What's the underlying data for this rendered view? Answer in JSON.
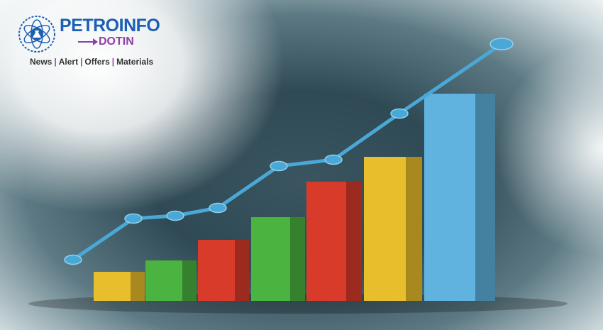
{
  "logo": {
    "brand": "PETROINFO",
    "suffix": "DOTIN",
    "tagline": [
      "News",
      "Alert",
      "Offers",
      "Materials"
    ],
    "separator": "|",
    "brand_color": "#1d5fb4",
    "accent_color": "#8e3fa8"
  },
  "illustration": {
    "bars": [
      {
        "color": "#e9be2c",
        "value": 41
      },
      {
        "color": "#4bb33f",
        "value": 57
      },
      {
        "color": "#d93b2b",
        "value": 86
      },
      {
        "color": "#4bb33f",
        "value": 118
      },
      {
        "color": "#d93b2b",
        "value": 168
      },
      {
        "color": "#e9be2c",
        "value": 203
      },
      {
        "color": "#5fb3de",
        "value": 292
      }
    ],
    "trend_line": {
      "color": "#4aa8d6",
      "values": [
        58,
        116,
        120,
        131,
        190,
        199,
        264,
        362
      ]
    }
  }
}
